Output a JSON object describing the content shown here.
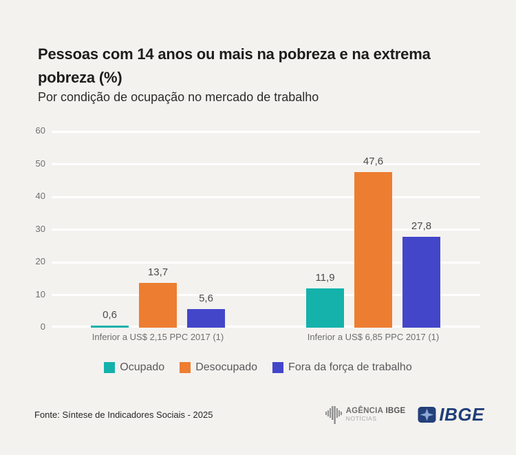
{
  "header": {
    "title": "Pessoas com 14 anos ou mais na pobreza e na extrema pobreza (%)",
    "subtitle": "Por condição de ocupação no mercado de trabalho"
  },
  "chart_data": {
    "type": "bar",
    "title": "Pessoas com 14 anos ou mais na pobreza e na extrema pobreza (%)",
    "subtitle": "Por condição de ocupação no mercado de trabalho",
    "categories": [
      "Inferior a US$ 2,15 PPC 2017 (1)",
      "Inferior a US$ 6,85 PPC 2017 (1)"
    ],
    "series": [
      {
        "name": "Ocupado",
        "color": "#14b2ab",
        "values": [
          0.6,
          11.9
        ],
        "labels": [
          "0,6",
          "11,9"
        ]
      },
      {
        "name": "Desocupado",
        "color": "#ed7d31",
        "values": [
          13.7,
          47.6
        ],
        "labels": [
          "13,7",
          "47,6"
        ]
      },
      {
        "name": "Fora da força de trabalho",
        "color": "#4346c9",
        "values": [
          5.6,
          27.8
        ],
        "labels": [
          "5,6",
          "27,8"
        ]
      }
    ],
    "xlabel": "",
    "ylabel": "",
    "ylim": [
      0,
      60
    ],
    "yticks": [
      0,
      10,
      20,
      30,
      40,
      50,
      60
    ],
    "grid": true,
    "gridline_color": "#ffffff",
    "legend_position": "bottom"
  },
  "footer": {
    "source": "Fonte: Síntese de Indicadores Sociais - 2025",
    "logos": {
      "agencia_word1": "AGÊNCIA",
      "agencia_word2": "IBGE",
      "agencia_sub": "NOTÍCIAS",
      "ibge_text": "IBGE"
    }
  },
  "colors": {
    "background": "#f4f2ef",
    "title_text": "#1d1d1b",
    "axis_text": "#6e6e6e",
    "value_text": "#4a4a4a",
    "ibge_blue": "#1e3e78",
    "ibge_star": "#8ea9d6"
  }
}
